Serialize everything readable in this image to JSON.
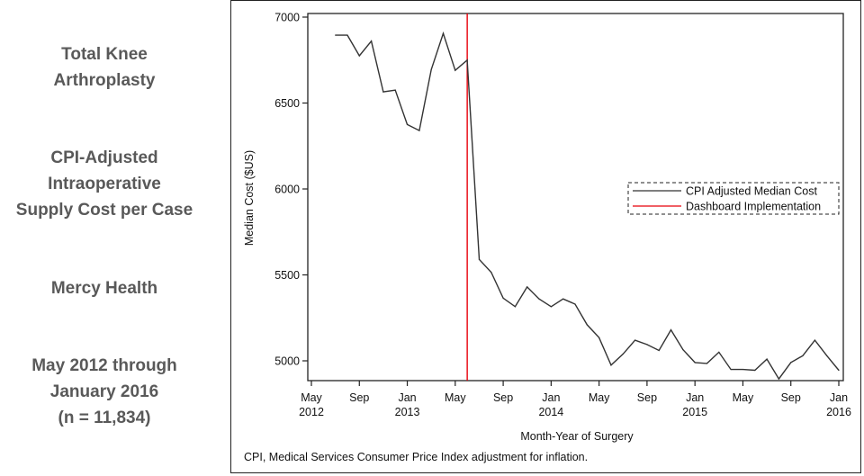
{
  "side_panel": {
    "blocks": [
      {
        "lines": [
          "Total Knee",
          "Arthroplasty"
        ]
      },
      {
        "lines": [
          "CPI-Adjusted",
          "Intraoperative",
          "Supply Cost per Case"
        ]
      },
      {
        "lines": [
          "Mercy Health"
        ]
      },
      {
        "lines": [
          "May 2012 through",
          "January 2016",
          "(n = 11,834)"
        ]
      }
    ]
  },
  "chart_data": {
    "type": "line",
    "title": "",
    "xlabel": "Month-Year of Surgery",
    "ylabel": "Median Cost ($US)",
    "ylim": [
      4880,
      7020
    ],
    "yticks": [
      5000,
      5500,
      6000,
      6500,
      7000
    ],
    "xlim": [
      "2012-05",
      "2016-01"
    ],
    "xticks": [
      {
        "month": "2012-05",
        "label": [
          "May",
          "2012"
        ]
      },
      {
        "month": "2012-09",
        "label": [
          "Sep"
        ]
      },
      {
        "month": "2013-01",
        "label": [
          "Jan",
          "2013"
        ]
      },
      {
        "month": "2013-05",
        "label": [
          "May"
        ]
      },
      {
        "month": "2013-09",
        "label": [
          "Sep"
        ]
      },
      {
        "month": "2014-01",
        "label": [
          "Jan",
          "2014"
        ]
      },
      {
        "month": "2014-05",
        "label": [
          "May"
        ]
      },
      {
        "month": "2014-09",
        "label": [
          "Sep"
        ]
      },
      {
        "month": "2015-01",
        "label": [
          "Jan",
          "2015"
        ]
      },
      {
        "month": "2015-05",
        "label": [
          "May"
        ]
      },
      {
        "month": "2015-09",
        "label": [
          "Sep"
        ]
      },
      {
        "month": "2016-01",
        "label": [
          "Jan",
          "2016"
        ]
      }
    ],
    "series": [
      {
        "name": "CPI Adjusted Median Cost",
        "color": "#333333",
        "x": [
          "2012-07",
          "2012-08",
          "2012-09",
          "2012-10",
          "2012-11",
          "2012-12",
          "2013-01",
          "2013-02",
          "2013-03",
          "2013-04",
          "2013-05",
          "2013-06",
          "2013-07",
          "2013-08",
          "2013-09",
          "2013-10",
          "2013-11",
          "2013-12",
          "2014-01",
          "2014-02",
          "2014-03",
          "2014-04",
          "2014-05",
          "2014-06",
          "2014-07",
          "2014-08",
          "2014-09",
          "2014-10",
          "2014-11",
          "2014-12",
          "2015-01",
          "2015-02",
          "2015-03",
          "2015-04",
          "2015-05",
          "2015-06",
          "2015-07",
          "2015-08",
          "2015-09",
          "2015-10",
          "2015-11",
          "2015-12",
          "2016-01"
        ],
        "values": [
          6895,
          6895,
          6775,
          6860,
          6565,
          6575,
          6375,
          6340,
          6695,
          6905,
          6690,
          6750,
          5590,
          5515,
          5365,
          5315,
          5430,
          5360,
          5315,
          5360,
          5330,
          5210,
          5135,
          4975,
          5040,
          5120,
          5095,
          5060,
          5180,
          5065,
          4990,
          4985,
          5050,
          4950,
          4950,
          4945,
          5010,
          4895,
          4990,
          5030,
          5120,
          5030,
          4945
        ]
      }
    ],
    "reference_lines": [
      {
        "name": "Dashboard Implementation",
        "color": "#e8000b",
        "x": "2013-06"
      }
    ],
    "legend": {
      "position": "right-middle",
      "entries": [
        {
          "label": "CPI Adjusted Median Cost",
          "color": "#333333"
        },
        {
          "label": "Dashboard Implementation",
          "color": "#e8000b"
        }
      ]
    },
    "footnote": "CPI, Medical Services Consumer Price Index adjustment for inflation.",
    "grid": false
  }
}
